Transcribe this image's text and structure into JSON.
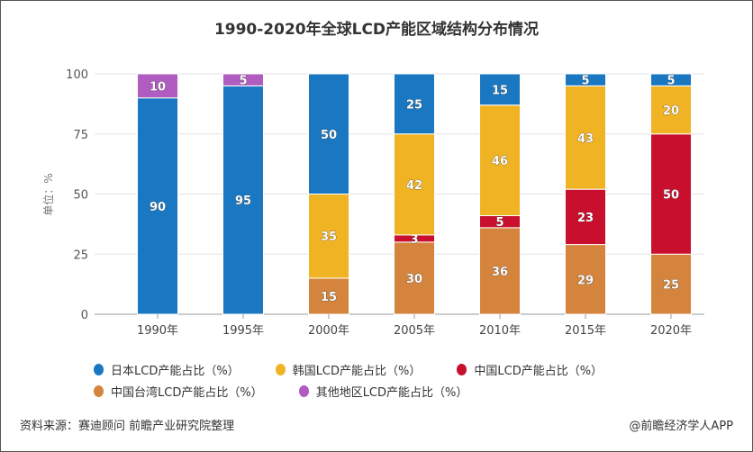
{
  "chart_data": {
    "type": "bar",
    "stacked": true,
    "title": "1990-2020年全球LCD产能区域结构分布情况",
    "ylabel": "单位：%",
    "xlabel": "",
    "ylim": [
      0,
      100
    ],
    "yticks": [
      "0",
      "25",
      "50",
      "75",
      "100"
    ],
    "grid": true,
    "legend_position": "bottom",
    "categories": [
      "1990年",
      "1995年",
      "2000年",
      "2005年",
      "2010年",
      "2015年",
      "2020年"
    ],
    "series": [
      {
        "name": "中国台湾LCD产能占比（%）",
        "color": "#d4843c",
        "values": [
          null,
          null,
          15,
          30,
          36,
          29,
          25
        ]
      },
      {
        "name": "中国LCD产能占比（%）",
        "color": "#c8102e",
        "values": [
          null,
          null,
          null,
          3,
          5,
          23,
          50
        ]
      },
      {
        "name": "韩国LCD产能占比（%）",
        "color": "#f0b323",
        "values": [
          null,
          null,
          35,
          42,
          46,
          43,
          20
        ]
      },
      {
        "name": "日本LCD产能占比（%）",
        "color": "#1a78c2",
        "values": [
          90,
          95,
          50,
          25,
          15,
          5,
          5
        ]
      },
      {
        "name": "其他地区LCD产能占比（%）",
        "color": "#b05cc0",
        "values": [
          10,
          5,
          null,
          null,
          null,
          null,
          null
        ]
      }
    ]
  },
  "legend_order": [
    3,
    2,
    1,
    0,
    4
  ],
  "footer": {
    "source": "资料来源：赛迪顾问 前瞻产业研究院整理",
    "credit": "@前瞻经济学人APP"
  }
}
